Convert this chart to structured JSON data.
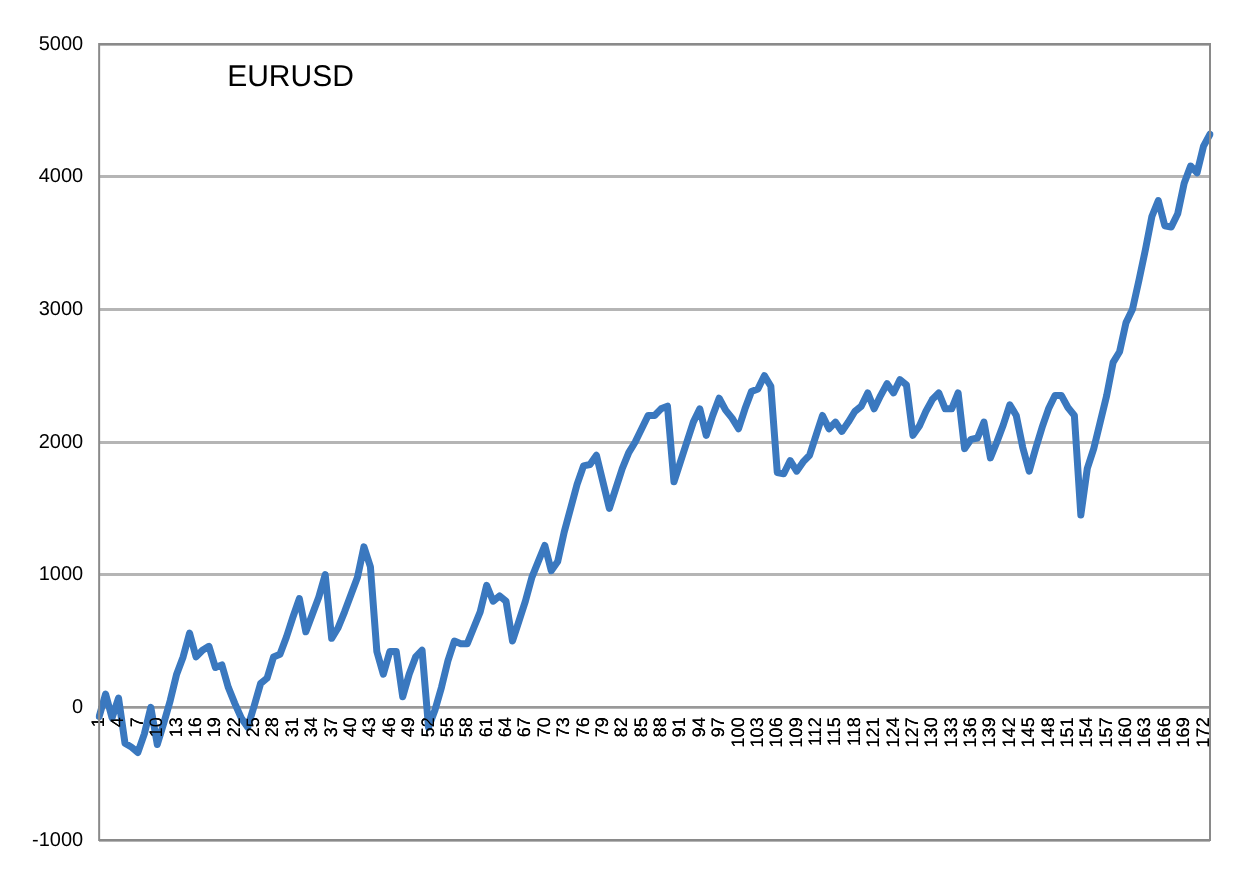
{
  "chart_data": {
    "type": "line",
    "title": "EURUSD",
    "categories": [
      "1",
      null,
      null,
      "4",
      null,
      null,
      "7",
      null,
      null,
      "10",
      null,
      null,
      "13",
      null,
      null,
      "16",
      null,
      null,
      "19",
      null,
      null,
      "22",
      null,
      null,
      "25",
      null,
      null,
      "28",
      null,
      null,
      "31",
      null,
      null,
      "34",
      null,
      null,
      "37",
      null,
      null,
      "40",
      null,
      null,
      "43",
      null,
      null,
      "46",
      null,
      null,
      "49",
      null,
      null,
      "52",
      null,
      null,
      "55",
      null,
      null,
      "58",
      null,
      null,
      "61",
      null,
      null,
      "64",
      null,
      null,
      "67",
      null,
      null,
      "70",
      null,
      null,
      "73",
      null,
      null,
      "76",
      null,
      null,
      "79",
      null,
      null,
      "82",
      null,
      null,
      "85",
      null,
      null,
      "88",
      null,
      null,
      "91",
      null,
      null,
      "94",
      null,
      null,
      "97",
      null,
      null,
      "100",
      null,
      null,
      "103",
      null,
      null,
      "106",
      null,
      null,
      "109",
      null,
      null,
      "112",
      null,
      null,
      "115",
      null,
      null,
      "118",
      null,
      null,
      "121",
      null,
      null,
      "124",
      null,
      null,
      "127",
      null,
      null,
      "130",
      null,
      null,
      "133",
      null,
      null,
      "136",
      null,
      null,
      "139",
      null,
      null,
      "142",
      null,
      null,
      "145",
      null,
      null,
      "148",
      null,
      null,
      "151",
      null,
      null,
      "154",
      null,
      null,
      "157",
      null,
      null,
      "160",
      null,
      null,
      "163",
      null,
      null,
      "166",
      null,
      null,
      "169",
      null,
      null,
      "172",
      null
    ],
    "series": [
      {
        "color": "#3a78bf",
        "values": [
          -70,
          100,
          -80,
          70,
          -270,
          -300,
          -340,
          -200,
          0,
          -280,
          -120,
          50,
          250,
          380,
          560,
          380,
          430,
          460,
          300,
          320,
          150,
          30,
          -80,
          -150,
          10,
          180,
          220,
          380,
          400,
          530,
          680,
          820,
          570,
          700,
          830,
          1000,
          520,
          600,
          720,
          850,
          980,
          1210,
          1060,
          420,
          250,
          420,
          420,
          80,
          250,
          380,
          430,
          -150,
          -20,
          150,
          350,
          500,
          480,
          480,
          600,
          720,
          920,
          800,
          840,
          800,
          500,
          650,
          800,
          980,
          1100,
          1220,
          1030,
          1100,
          1320,
          1500,
          1680,
          1820,
          1830,
          1900,
          1700,
          1500,
          1650,
          1800,
          1920,
          2000,
          2100,
          2200,
          2200,
          2250,
          2270,
          1700,
          1850,
          2000,
          2150,
          2250,
          2050,
          2200,
          2330,
          2240,
          2180,
          2100,
          2250,
          2380,
          2400,
          2500,
          2420,
          1770,
          1760,
          1860,
          1780,
          1850,
          1900,
          2050,
          2200,
          2100,
          2150,
          2080,
          2150,
          2230,
          2270,
          2370,
          2250,
          2350,
          2440,
          2370,
          2470,
          2430,
          2050,
          2120,
          2230,
          2320,
          2370,
          2250,
          2250,
          2370,
          1950,
          2020,
          2030,
          2150,
          1880,
          2000,
          2130,
          2280,
          2200,
          1960,
          1780,
          1950,
          2110,
          2250,
          2350,
          2350,
          2260,
          2200,
          1450,
          1800,
          1950,
          2150,
          2350,
          2600,
          2680,
          2900,
          3000,
          3220,
          3450,
          3700,
          3820,
          3630,
          3620,
          3720,
          3950,
          4080,
          4030,
          4230,
          4320
        ]
      }
    ],
    "ylim": [
      -1000,
      5000
    ],
    "yticks": [
      -1000,
      0,
      1000,
      2000,
      3000,
      4000,
      5000
    ],
    "grid": "y",
    "legend": false,
    "marker": "none",
    "line_style": "solid"
  }
}
